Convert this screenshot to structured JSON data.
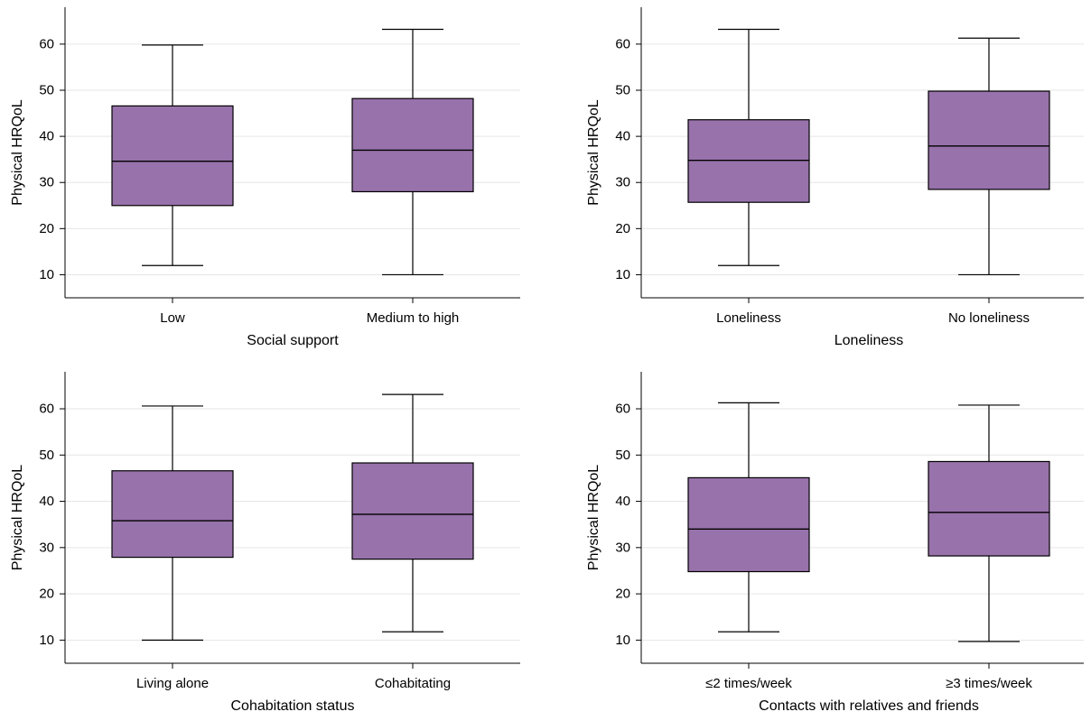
{
  "chart_data": [
    {
      "type": "box",
      "ylabel": "Physical HRQoL",
      "xlabel": "Social support",
      "yticks": [
        10,
        20,
        30,
        40,
        50,
        60
      ],
      "ylim": [
        5,
        68
      ],
      "categories": [
        "Low",
        "Medium to high"
      ],
      "boxes": [
        {
          "min": 12,
          "q1": 25,
          "median": 34.6,
          "q3": 46.6,
          "max": 59.8
        },
        {
          "min": 10,
          "q1": 28,
          "median": 37,
          "q3": 48.2,
          "max": 63.2
        }
      ]
    },
    {
      "type": "box",
      "ylabel": "Physical HRQoL",
      "xlabel": "Loneliness",
      "yticks": [
        10,
        20,
        30,
        40,
        50,
        60
      ],
      "ylim": [
        5,
        68
      ],
      "categories": [
        "Loneliness",
        "No loneliness"
      ],
      "boxes": [
        {
          "min": 12,
          "q1": 25.7,
          "median": 34.8,
          "q3": 43.6,
          "max": 63.2
        },
        {
          "min": 10,
          "q1": 28.5,
          "median": 37.9,
          "q3": 49.8,
          "max": 61.3
        }
      ]
    },
    {
      "type": "box",
      "ylabel": "Physical HRQoL",
      "xlabel": "Cohabitation status",
      "yticks": [
        10,
        20,
        30,
        40,
        50,
        60
      ],
      "ylim": [
        5,
        68
      ],
      "categories": [
        "Living alone",
        "Cohabitating"
      ],
      "boxes": [
        {
          "min": 10,
          "q1": 27.9,
          "median": 35.8,
          "q3": 46.6,
          "max": 60.6
        },
        {
          "min": 11.8,
          "q1": 27.5,
          "median": 37.2,
          "q3": 48.3,
          "max": 63.1
        }
      ]
    },
    {
      "type": "box",
      "ylabel": "Physical HRQoL",
      "xlabel": "Contacts with relatives and friends",
      "yticks": [
        10,
        20,
        30,
        40,
        50,
        60
      ],
      "ylim": [
        5,
        68
      ],
      "categories": [
        "≤2 times/week",
        "≥3 times/week"
      ],
      "boxes": [
        {
          "min": 11.8,
          "q1": 24.8,
          "median": 34,
          "q3": 45.1,
          "max": 61.3
        },
        {
          "min": 9.7,
          "q1": 28.2,
          "median": 37.6,
          "q3": 48.6,
          "max": 60.8
        }
      ]
    }
  ],
  "style": {
    "box_fill": "#9872ab",
    "line_color": "#000000",
    "grid_color": "#e6e6e6"
  }
}
